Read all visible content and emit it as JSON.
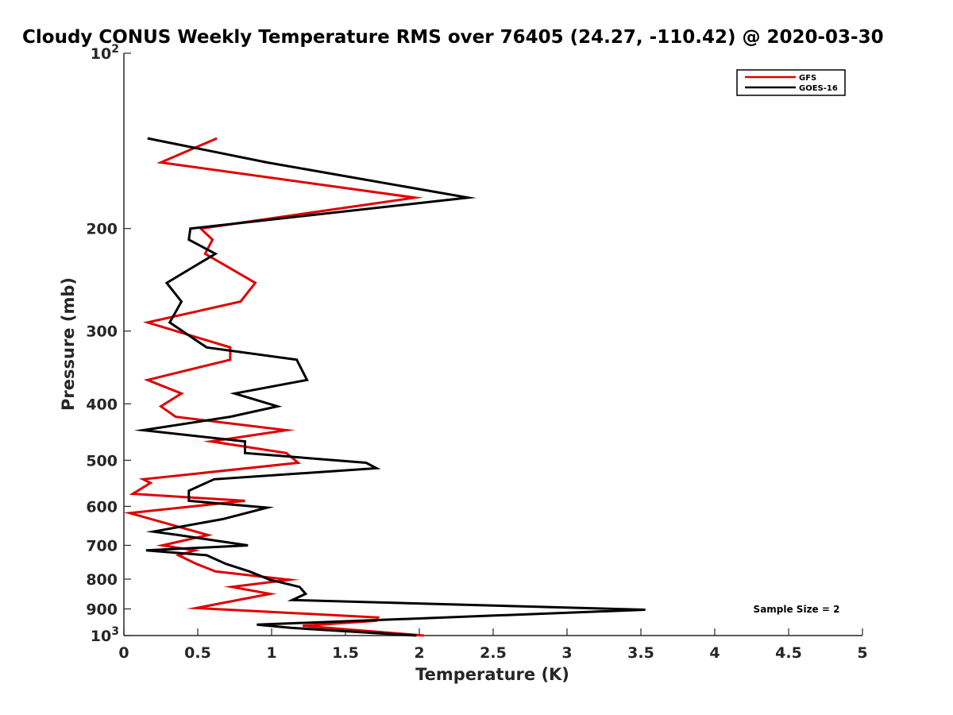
{
  "chart_data": {
    "type": "line",
    "title": "Cloudy CONUS Weekly Temperature RMS over 76405 (24.27, -110.42) @ 2020-03-30",
    "xlabel": "Temperature (K)",
    "ylabel": "Pressure (mb)",
    "xlim": [
      0,
      5
    ],
    "ylim": [
      100,
      1000
    ],
    "y_scale": "log",
    "y_reversed": true,
    "x_ticks": [
      0,
      0.5,
      1,
      1.5,
      2,
      2.5,
      3,
      3.5,
      4,
      4.5,
      5
    ],
    "x_tick_labels": [
      "0",
      "0.5",
      "1",
      "1.5",
      "2",
      "2.5",
      "3",
      "3.5",
      "4",
      "4.5",
      "5"
    ],
    "y_ticks": [
      100,
      200,
      300,
      400,
      500,
      600,
      700,
      800,
      900,
      1000
    ],
    "y_tick_labels": [
      {
        "base": "10",
        "exp": "2"
      },
      {
        "base": "200",
        "exp": ""
      },
      {
        "base": "300",
        "exp": ""
      },
      {
        "base": "400",
        "exp": ""
      },
      {
        "base": "500",
        "exp": ""
      },
      {
        "base": "600",
        "exp": ""
      },
      {
        "base": "700",
        "exp": ""
      },
      {
        "base": "800",
        "exp": ""
      },
      {
        "base": "900",
        "exp": ""
      },
      {
        "base": "10",
        "exp": "3"
      }
    ],
    "legend": {
      "position": "top-right",
      "entries": [
        "GFS",
        "GOES-16"
      ]
    },
    "annotation": "Sample Size = 2",
    "series": [
      {
        "name": "GFS",
        "color": "#e00000",
        "temperature": [
          0.63,
          0.25,
          1.97,
          0.52,
          0.6,
          0.55,
          0.89,
          0.79,
          0.16,
          0.72,
          0.72,
          0.16,
          0.39,
          0.25,
          0.35,
          1.1,
          0.59,
          1.1,
          1.18,
          0.13,
          0.18,
          0.06,
          0.82,
          0.04,
          0.57,
          0.26,
          0.48,
          0.37,
          0.49,
          0.62,
          1.12,
          0.73,
          0.99,
          0.49,
          1.72,
          1.71,
          1.21,
          2.03
        ],
        "pressure": [
          140,
          154,
          177,
          200,
          209,
          221,
          248,
          267,
          290,
          320,
          336,
          364,
          384,
          404,
          421,
          444,
          464,
          486,
          505,
          539,
          547,
          571,
          587,
          616,
          672,
          700,
          714,
          728,
          753,
          776,
          802,
          825,
          848,
          897,
          931,
          943,
          962,
          1000
        ]
      },
      {
        "name": "GOES-16",
        "color": "#000000",
        "temperature": [
          0.16,
          0.97,
          2.33,
          0.45,
          0.44,
          0.62,
          0.29,
          0.39,
          0.31,
          0.56,
          1.17,
          1.24,
          0.75,
          1.04,
          0.72,
          0.13,
          0.82,
          0.82,
          1.64,
          1.71,
          0.61,
          0.44,
          0.44,
          0.97,
          0.67,
          0.2,
          0.37,
          0.84,
          0.15,
          0.56,
          0.69,
          0.85,
          0.99,
          1.19,
          1.23,
          1.14,
          3.53,
          0.9,
          1.13,
          1.98
        ],
        "pressure": [
          140,
          154,
          177,
          200,
          209,
          221,
          248,
          267,
          290,
          320,
          336,
          364,
          384,
          404,
          421,
          444,
          464,
          486,
          505,
          516,
          539,
          564,
          587,
          603,
          631,
          663,
          672,
          700,
          714,
          728,
          753,
          776,
          802,
          825,
          848,
          869,
          903,
          958,
          970,
          1000
        ]
      }
    ]
  }
}
